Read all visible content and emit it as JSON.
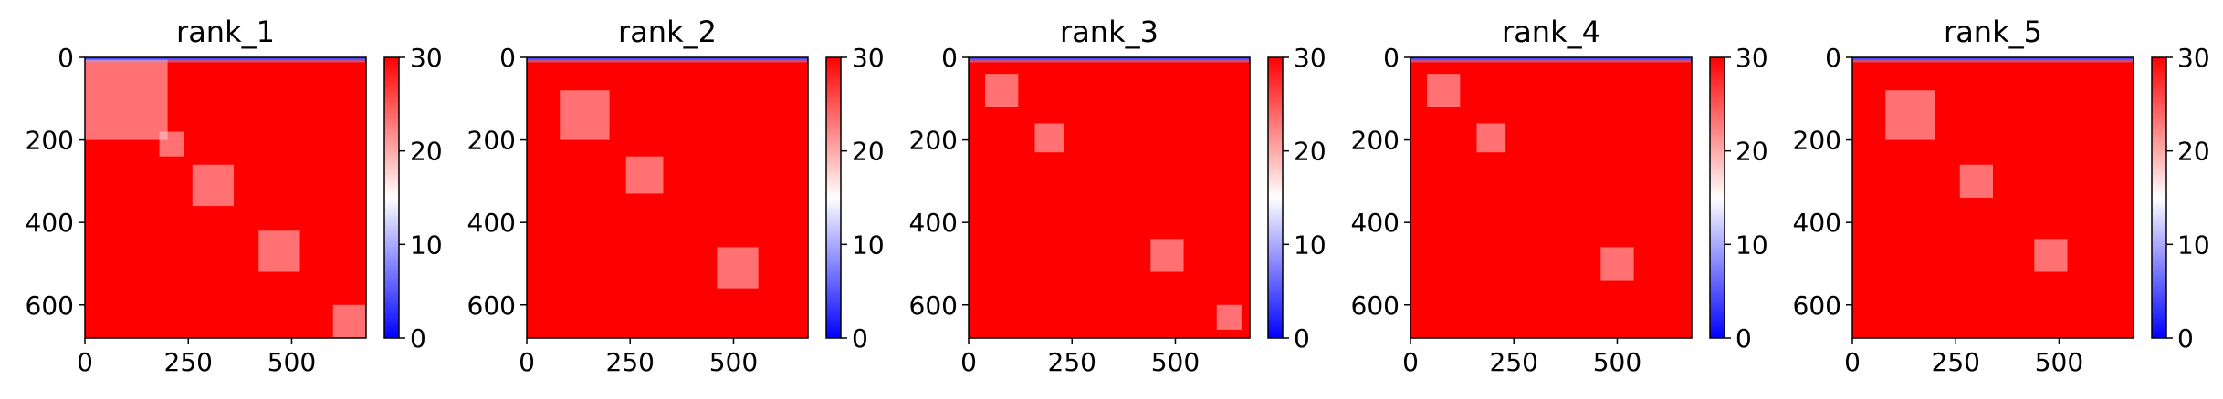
{
  "chart_data": [
    {
      "type": "heatmap",
      "title": "rank_1",
      "xlim": [
        0,
        680
      ],
      "ylim": [
        680,
        0
      ],
      "xticks": [
        0,
        250,
        500
      ],
      "yticks": [
        0,
        200,
        400,
        600
      ],
      "colorbar": {
        "ticks": [
          0,
          10,
          20,
          30
        ],
        "range": [
          0,
          30
        ],
        "colormap": "bwr"
      },
      "colors": {
        "low": "#0000ff",
        "mid": "#ffffff",
        "high": "#ff0000"
      },
      "blocks": [
        {
          "x": [
            0,
            200
          ],
          "y": [
            0,
            200
          ]
        },
        {
          "x": [
            180,
            240
          ],
          "y": [
            180,
            240
          ]
        },
        {
          "x": [
            260,
            360
          ],
          "y": [
            260,
            360
          ]
        },
        {
          "x": [
            420,
            520
          ],
          "y": [
            420,
            520
          ]
        },
        {
          "x": [
            600,
            680
          ],
          "y": [
            600,
            680
          ]
        }
      ]
    },
    {
      "type": "heatmap",
      "title": "rank_2",
      "xlim": [
        0,
        680
      ],
      "ylim": [
        680,
        0
      ],
      "xticks": [
        0,
        250,
        500
      ],
      "yticks": [
        0,
        200,
        400,
        600
      ],
      "colorbar": {
        "ticks": [
          0,
          10,
          20,
          30
        ],
        "range": [
          0,
          30
        ],
        "colormap": "bwr"
      },
      "colors": {
        "low": "#0000ff",
        "mid": "#ffffff",
        "high": "#ff0000"
      },
      "blocks": [
        {
          "x": [
            80,
            200
          ],
          "y": [
            80,
            200
          ]
        },
        {
          "x": [
            240,
            330
          ],
          "y": [
            240,
            330
          ]
        },
        {
          "x": [
            460,
            560
          ],
          "y": [
            460,
            560
          ]
        }
      ]
    },
    {
      "type": "heatmap",
      "title": "rank_3",
      "xlim": [
        0,
        680
      ],
      "ylim": [
        680,
        0
      ],
      "xticks": [
        0,
        250,
        500
      ],
      "yticks": [
        0,
        200,
        400,
        600
      ],
      "colorbar": {
        "ticks": [
          0,
          10,
          20,
          30
        ],
        "range": [
          0,
          30
        ],
        "colormap": "bwr"
      },
      "colors": {
        "low": "#0000ff",
        "mid": "#ffffff",
        "high": "#ff0000"
      },
      "blocks": [
        {
          "x": [
            40,
            120
          ],
          "y": [
            40,
            120
          ]
        },
        {
          "x": [
            160,
            230
          ],
          "y": [
            160,
            230
          ]
        },
        {
          "x": [
            440,
            520
          ],
          "y": [
            440,
            520
          ]
        },
        {
          "x": [
            600,
            660
          ],
          "y": [
            600,
            660
          ]
        }
      ]
    },
    {
      "type": "heatmap",
      "title": "rank_4",
      "xlim": [
        0,
        680
      ],
      "ylim": [
        680,
        0
      ],
      "xticks": [
        0,
        250,
        500
      ],
      "yticks": [
        0,
        200,
        400,
        600
      ],
      "colorbar": {
        "ticks": [
          0,
          10,
          20,
          30
        ],
        "range": [
          0,
          30
        ],
        "colormap": "bwr"
      },
      "colors": {
        "low": "#0000ff",
        "mid": "#ffffff",
        "high": "#ff0000"
      },
      "blocks": [
        {
          "x": [
            40,
            120
          ],
          "y": [
            40,
            120
          ]
        },
        {
          "x": [
            160,
            230
          ],
          "y": [
            160,
            230
          ]
        },
        {
          "x": [
            460,
            540
          ],
          "y": [
            460,
            540
          ]
        }
      ]
    },
    {
      "type": "heatmap",
      "title": "rank_5",
      "xlim": [
        0,
        680
      ],
      "ylim": [
        680,
        0
      ],
      "xticks": [
        0,
        250,
        500
      ],
      "yticks": [
        0,
        200,
        400,
        600
      ],
      "colorbar": {
        "ticks": [
          0,
          10,
          20,
          30
        ],
        "range": [
          0,
          30
        ],
        "colormap": "bwr"
      },
      "colors": {
        "low": "#0000ff",
        "mid": "#ffffff",
        "high": "#ff0000"
      },
      "blocks": [
        {
          "x": [
            80,
            200
          ],
          "y": [
            80,
            200
          ]
        },
        {
          "x": [
            260,
            340
          ],
          "y": [
            260,
            340
          ]
        },
        {
          "x": [
            440,
            520
          ],
          "y": [
            440,
            520
          ]
        }
      ]
    }
  ]
}
